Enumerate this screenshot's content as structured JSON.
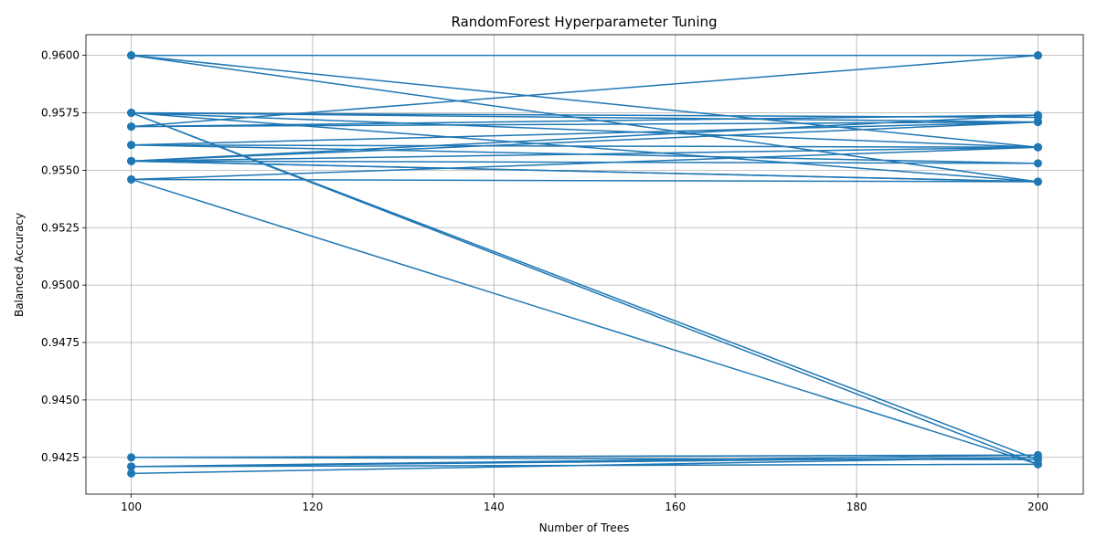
{
  "chart_data": {
    "type": "line",
    "title": "RandomForest Hyperparameter Tuning",
    "xlabel": "Number of Trees",
    "ylabel": "Balanced Accuracy",
    "xlim": [
      95,
      205
    ],
    "ylim": [
      0.9409,
      0.9609
    ],
    "xticks": [
      100,
      120,
      140,
      160,
      180,
      200
    ],
    "xtick_labels": [
      "100",
      "120",
      "140",
      "160",
      "180",
      "200"
    ],
    "yticks": [
      0.9425,
      0.945,
      0.9475,
      0.95,
      0.9525,
      0.955,
      0.9575,
      0.96
    ],
    "ytick_labels": [
      "0.9425",
      "0.9450",
      "0.9475",
      "0.9500",
      "0.9525",
      "0.9550",
      "0.9575",
      "0.9600"
    ],
    "grid": true,
    "line_color": "#1f77b4",
    "marker": "circle",
    "series": [
      {
        "x": [
          100,
          200,
          100,
          200,
          100,
          200,
          100,
          200,
          100,
          200,
          100,
          200,
          100,
          200,
          100,
          200,
          100,
          200,
          100,
          200,
          100,
          200,
          100,
          200,
          100,
          200
        ],
        "y": [
          0.9418,
          0.9425,
          0.9421,
          0.9422,
          0.9421,
          0.9426,
          0.9425,
          0.9424,
          0.9575,
          0.9422,
          0.9546,
          0.956,
          0.9554,
          0.9553,
          0.9561,
          0.9571,
          0.9569,
          0.96,
          0.96,
          0.9545,
          0.9546,
          0.9545,
          0.9554,
          0.9574,
          0.9569,
          0.96
        ]
      },
      {
        "x": [
          100,
          200,
          100,
          200,
          100,
          200,
          100,
          200,
          100,
          200
        ],
        "y": [
          0.96,
          0.956,
          0.9561,
          0.956,
          0.9575,
          0.9545,
          0.9554,
          0.9571,
          0.9575,
          0.9573
        ]
      }
    ]
  }
}
